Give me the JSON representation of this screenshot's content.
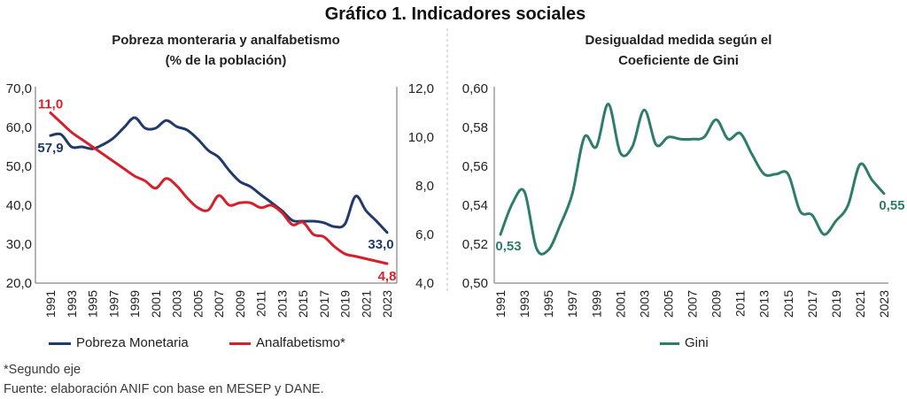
{
  "title": "Gráfico 1. Indicadores sociales",
  "footnote": "*Segundo eje",
  "source": "Fuente: elaboración ANIF con base en MESEP y DANE.",
  "chart_data": [
    {
      "type": "line",
      "title": "Pobreza monteraria y analfabetismo",
      "subtitle": "(% de la población)",
      "x": [
        1991,
        1992,
        1993,
        1994,
        1995,
        1996,
        1997,
        1998,
        1999,
        2000,
        2001,
        2002,
        2003,
        2004,
        2005,
        2006,
        2007,
        2008,
        2009,
        2010,
        2011,
        2012,
        2013,
        2014,
        2015,
        2016,
        2017,
        2018,
        2019,
        2020,
        2021,
        2022,
        2023
      ],
      "x_tick_labels": [
        "1991",
        "1993",
        "1995",
        "1997",
        "1999",
        "2001",
        "2003",
        "2005",
        "2007",
        "2009",
        "2011",
        "2013",
        "2015",
        "2017",
        "2019",
        "2021",
        "2023"
      ],
      "y_axis_left": {
        "min": 20,
        "max": 70,
        "ticks": [
          70,
          60,
          50,
          40,
          30,
          20
        ],
        "tick_labels": [
          "70,0",
          "60,0",
          "50,0",
          "40,0",
          "30,0",
          "20,0"
        ]
      },
      "y_axis_right": {
        "min": 4,
        "max": 12,
        "ticks": [
          12,
          10,
          8,
          6,
          4
        ],
        "tick_labels": [
          "12,0",
          "10,0",
          "8,0",
          "6,0",
          "4,0"
        ]
      },
      "grid": false,
      "legend": "bottom",
      "series": [
        {
          "name": "Pobreza Monetaria",
          "axis": "left",
          "color": "#213a6b",
          "values": [
            57.9,
            58.2,
            55.0,
            55.0,
            54.5,
            55.6,
            57.3,
            60.0,
            62.5,
            59.8,
            59.8,
            61.8,
            60.2,
            59.3,
            57.0,
            54.1,
            52.3,
            48.9,
            46.1,
            44.8,
            42.7,
            40.7,
            38.6,
            36.1,
            35.9,
            35.9,
            35.5,
            34.5,
            35.2,
            42.3,
            38.6,
            35.9,
            33.0
          ]
        },
        {
          "name": "Analfabetismo*",
          "axis": "right",
          "color": "#d71f2a",
          "values": [
            11.0,
            10.6,
            10.2,
            9.9,
            9.6,
            9.3,
            9.0,
            8.7,
            8.4,
            8.2,
            7.9,
            8.3,
            8.0,
            7.5,
            7.1,
            7.0,
            7.6,
            7.2,
            7.3,
            7.3,
            7.1,
            7.2,
            6.9,
            6.4,
            6.5,
            6.0,
            5.9,
            5.5,
            5.2,
            5.1,
            5.0,
            4.9,
            4.8
          ]
        }
      ],
      "data_labels": [
        {
          "series": 0,
          "x": 1991,
          "text": "57,9",
          "position": "below"
        },
        {
          "series": 1,
          "x": 1991,
          "text": "11,0",
          "position": "above"
        },
        {
          "series": 0,
          "x": 2023,
          "text": "33,0",
          "position": "below-left"
        },
        {
          "series": 1,
          "x": 2023,
          "text": "4,8",
          "position": "below"
        }
      ]
    },
    {
      "type": "line",
      "title": [
        "Desigualdad medida según el",
        "Coeficiente de Gini"
      ],
      "x": [
        1991,
        1992,
        1993,
        1994,
        1995,
        1996,
        1997,
        1998,
        1999,
        2000,
        2001,
        2002,
        2003,
        2004,
        2005,
        2006,
        2007,
        2008,
        2009,
        2010,
        2011,
        2012,
        2013,
        2014,
        2015,
        2016,
        2017,
        2018,
        2019,
        2020,
        2021,
        2022,
        2023
      ],
      "x_tick_labels": [
        "1991",
        "1993",
        "1995",
        "1997",
        "1999",
        "2001",
        "2003",
        "2005",
        "2007",
        "2009",
        "2011",
        "2013",
        "2015",
        "2017",
        "2019",
        "2021",
        "2023"
      ],
      "y_axis_left": {
        "min": 0.5,
        "max": 0.6,
        "ticks": [
          0.6,
          0.58,
          0.56,
          0.54,
          0.52,
          0.5
        ],
        "tick_labels": [
          "0,60",
          "0,58",
          "0,56",
          "0,54",
          "0,52",
          "0,50"
        ]
      },
      "grid": false,
      "legend": "bottom",
      "series": [
        {
          "name": "Gini",
          "axis": "left",
          "color": "#2e7d6c",
          "values": [
            0.525,
            0.541,
            0.547,
            0.518,
            0.517,
            0.53,
            0.546,
            0.575,
            0.57,
            0.592,
            0.567,
            0.57,
            0.589,
            0.571,
            0.575,
            0.574,
            0.574,
            0.575,
            0.584,
            0.574,
            0.577,
            0.566,
            0.556,
            0.556,
            0.556,
            0.537,
            0.535,
            0.525,
            0.532,
            0.54,
            0.561,
            0.553,
            0.546
          ]
        }
      ],
      "data_labels": [
        {
          "series": 0,
          "x": 1991,
          "text": "0,53",
          "position": "below-right"
        },
        {
          "series": 0,
          "x": 2023,
          "text": "0,55",
          "position": "below-right"
        }
      ]
    }
  ]
}
